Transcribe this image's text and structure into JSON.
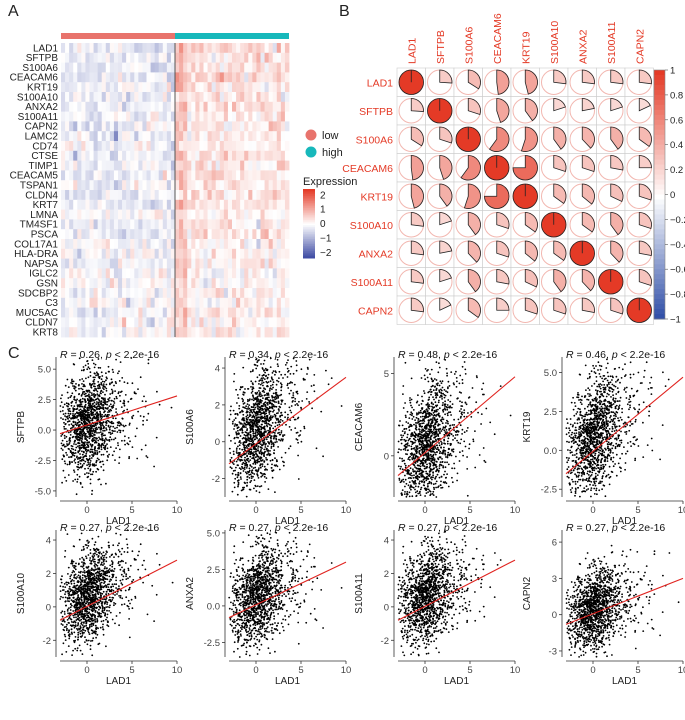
{
  "panels": {
    "a": "A",
    "b": "B",
    "c": "C"
  },
  "chart_data": [
    {
      "type": "heatmap",
      "genes": [
        "LAD1",
        "SFTPB",
        "S100A6",
        "CEACAM6",
        "KRT19",
        "S100A10",
        "ANXA2",
        "S100A11",
        "CAPN2",
        "LAMC2",
        "CD74",
        "CTSE",
        "TIMP1",
        "CEACAM5",
        "TSPAN1",
        "CLDN4",
        "KRT7",
        "LMNA",
        "TM4SF1",
        "PSCA",
        "COL17A1",
        "HLA-DRA",
        "NAPSA",
        "IGLC2",
        "GSN",
        "SDCBP2",
        "C3",
        "MUC5AC",
        "CLDN7",
        "KRT8"
      ],
      "groups": [
        {
          "name": "low",
          "color": "#e8736c"
        },
        {
          "name": "high",
          "color": "#17b8bb"
        }
      ],
      "legend_title": "Expression",
      "scale_ticks": [
        2,
        1,
        0,
        -1,
        -2
      ],
      "scale_colors": {
        "high": "#e43a26",
        "mid": "#ffffff",
        "low": "#3745a0"
      },
      "mean_expression": {
        "low": [
          -0.3,
          -0.2,
          -0.2,
          -0.3,
          -0.2,
          -0.2,
          -0.2,
          -0.2,
          -0.2,
          -0.2,
          -0.1,
          -0.2,
          -0.2,
          -0.3,
          -0.2,
          -0.2,
          -0.2,
          -0.1,
          -0.2,
          -0.2,
          -0.1,
          -0.1,
          -0.2,
          0.0,
          0.0,
          -0.1,
          -0.1,
          -0.1,
          -0.1,
          -0.1
        ],
        "high": [
          0.5,
          0.3,
          0.3,
          0.4,
          0.3,
          0.3,
          0.3,
          0.3,
          0.3,
          0.3,
          0.2,
          0.3,
          0.3,
          0.3,
          0.3,
          0.3,
          0.3,
          0.2,
          0.3,
          0.3,
          0.2,
          0.2,
          0.2,
          0.1,
          0.1,
          0.2,
          0.1,
          0.2,
          0.2,
          0.2
        ]
      }
    },
    {
      "type": "heatmap",
      "variables": [
        "LAD1",
        "SFTPB",
        "S100A6",
        "CEACAM6",
        "KRT19",
        "S100A10",
        "ANXA2",
        "S100A11",
        "CAPN2"
      ],
      "values": [
        [
          1.0,
          0.26,
          0.34,
          0.48,
          0.46,
          0.27,
          0.27,
          0.27,
          0.27
        ],
        [
          0.26,
          1.0,
          0.3,
          0.45,
          0.4,
          0.2,
          0.22,
          0.2,
          0.18
        ],
        [
          0.34,
          0.3,
          1.0,
          0.6,
          0.55,
          0.4,
          0.38,
          0.4,
          0.35
        ],
        [
          0.48,
          0.45,
          0.6,
          1.0,
          0.75,
          0.3,
          0.3,
          0.28,
          0.25
        ],
        [
          0.46,
          0.4,
          0.55,
          0.75,
          1.0,
          0.35,
          0.36,
          0.32,
          0.3
        ],
        [
          0.27,
          0.2,
          0.4,
          0.3,
          0.35,
          1.0,
          0.35,
          0.4,
          0.3
        ],
        [
          0.27,
          0.22,
          0.38,
          0.3,
          0.36,
          0.35,
          1.0,
          0.38,
          0.28
        ],
        [
          0.27,
          0.2,
          0.4,
          0.28,
          0.32,
          0.4,
          0.38,
          1.0,
          0.3
        ],
        [
          0.27,
          0.18,
          0.35,
          0.25,
          0.3,
          0.3,
          0.28,
          0.3,
          1.0
        ]
      ],
      "scale_ticks": [
        1,
        0.8,
        0.6,
        0.4,
        0.2,
        0,
        -0.2,
        -0.4,
        -0.6,
        -0.8,
        -1
      ],
      "colors": {
        "positive": "#e43a26",
        "negative": "#2a4aa5"
      }
    },
    {
      "type": "scatter",
      "xlabel": "LAD1",
      "panels": [
        {
          "ylabel": "SFTPB",
          "R": "0.26",
          "p": "p < 2.2e-16",
          "xlim": [
            -3,
            10
          ],
          "ylim": [
            -5.5,
            6
          ],
          "yticks": [
            "5.0",
            "2.5",
            "0.0",
            "-2.5",
            "-5.0"
          ],
          "ytick_values": [
            5,
            2.5,
            0,
            -2.5,
            -5
          ],
          "fit": [
            [
              -3,
              -0.3
            ],
            [
              10,
              2.8
            ]
          ],
          "center": [
            0,
            0.5
          ],
          "spread": [
            1.6,
            2.0
          ]
        },
        {
          "ylabel": "S100A6",
          "R": "0.34",
          "p": "p < 2.2e-16",
          "xlim": [
            -3,
            10
          ],
          "ylim": [
            -3,
            4.6
          ],
          "yticks": [
            "4",
            "2",
            "0",
            "-2"
          ],
          "ytick_values": [
            4,
            2,
            0,
            -2
          ],
          "fit": [
            [
              -3,
              -1.2
            ],
            [
              10,
              3.5
            ]
          ],
          "center": [
            0,
            0.6
          ],
          "spread": [
            1.6,
            1.5
          ]
        },
        {
          "ylabel": "CEACAM6",
          "R": "0.48",
          "p": "p < 2.2e-16",
          "xlim": [
            -3,
            10
          ],
          "ylim": [
            -2.5,
            6
          ],
          "yticks": [
            "5",
            "0"
          ],
          "ytick_values": [
            5,
            0
          ],
          "fit": [
            [
              -3,
              -1.2
            ],
            [
              10,
              4.8
            ]
          ],
          "center": [
            0,
            0.6
          ],
          "spread": [
            1.6,
            1.8
          ]
        },
        {
          "ylabel": "KRT19",
          "R": "0.46",
          "p": "p < 2.2e-16",
          "xlim": [
            -3,
            10
          ],
          "ylim": [
            -3,
            6
          ],
          "yticks": [
            "5.0",
            "2.5",
            "0.0",
            "-2.5"
          ],
          "ytick_values": [
            5,
            2.5,
            0,
            -2.5
          ],
          "fit": [
            [
              -3,
              -1.5
            ],
            [
              10,
              4.7
            ]
          ],
          "center": [
            0,
            0.8
          ],
          "spread": [
            1.6,
            1.8
          ]
        },
        {
          "ylabel": "S100A10",
          "R": "0.27",
          "p": "p < 2.2e-16",
          "xlim": [
            -3,
            10
          ],
          "ylim": [
            -3,
            4.6
          ],
          "yticks": [
            "4",
            "2",
            "0",
            "-2"
          ],
          "ytick_values": [
            4,
            2,
            0,
            -2
          ],
          "fit": [
            [
              -3,
              -0.8
            ],
            [
              10,
              2.8
            ]
          ],
          "center": [
            0,
            0.6
          ],
          "spread": [
            1.6,
            1.3
          ]
        },
        {
          "ylabel": "ANXA2",
          "R": "0.27",
          "p": "p < 2.2e-16",
          "xlim": [
            -3,
            10
          ],
          "ylim": [
            -3.5,
            5.2
          ],
          "yticks": [
            "5.0",
            "2.5",
            "0.0",
            "-2.5"
          ],
          "ytick_values": [
            5,
            2.5,
            0,
            -2.5
          ],
          "fit": [
            [
              -3,
              -0.8
            ],
            [
              10,
              3.0
            ]
          ],
          "center": [
            0,
            0.6
          ],
          "spread": [
            1.6,
            1.6
          ]
        },
        {
          "ylabel": "S100A11",
          "R": "0.27",
          "p": "p < 2.2e-16",
          "xlim": [
            -3,
            10
          ],
          "ylim": [
            -3,
            4.6
          ],
          "yticks": [
            "4",
            "2",
            "0",
            "-2"
          ],
          "ytick_values": [
            4,
            2,
            0,
            -2
          ],
          "fit": [
            [
              -3,
              -0.8
            ],
            [
              10,
              2.8
            ]
          ],
          "center": [
            0,
            0.6
          ],
          "spread": [
            1.6,
            1.4
          ]
        },
        {
          "ylabel": "CAPN2",
          "R": "0.27",
          "p": "p < 2.2e-16",
          "xlim": [
            -3,
            10
          ],
          "ylim": [
            -3.5,
            7
          ],
          "yticks": [
            "6",
            "3",
            "0",
            "-3"
          ],
          "ytick_values": [
            6,
            3,
            0,
            -3
          ],
          "fit": [
            [
              -3,
              -0.8
            ],
            [
              10,
              3.0
            ]
          ],
          "center": [
            0,
            0.4
          ],
          "spread": [
            1.6,
            1.6
          ]
        }
      ],
      "xticks": [
        0,
        5,
        10
      ],
      "point_color": "#000000",
      "fit_color": "#e0231f"
    }
  ]
}
